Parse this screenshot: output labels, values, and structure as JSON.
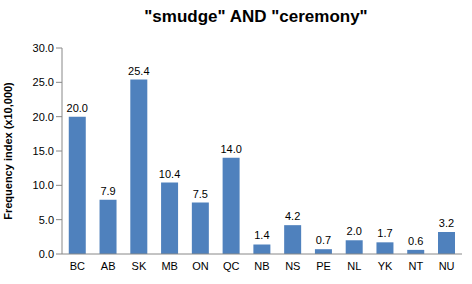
{
  "chart_data": {
    "type": "bar",
    "title": "\"smudge\" AND \"ceremony\"",
    "y_label": "Frequency index (x10,000)",
    "categories": [
      "BC",
      "AB",
      "SK",
      "MB",
      "ON",
      "QC",
      "NB",
      "NS",
      "PE",
      "NL",
      "YK",
      "NT",
      "NU"
    ],
    "values": [
      20.0,
      7.9,
      25.4,
      10.4,
      7.5,
      14.0,
      1.4,
      4.2,
      0.7,
      2.0,
      1.7,
      0.6,
      3.2
    ],
    "value_labels": [
      "20.0",
      "7.9",
      "25.4",
      "10.4",
      "7.5",
      "14.0",
      "1.4",
      "4.2",
      "0.7",
      "2.0",
      "1.7",
      "0.6",
      "3.2"
    ],
    "color": "#4f81bd",
    "ylim": [
      0,
      30
    ],
    "yticks": [
      {
        "value": 0,
        "label": "0.0"
      },
      {
        "value": 5,
        "label": "5.0"
      },
      {
        "value": 10,
        "label": "10.0"
      },
      {
        "value": 15,
        "label": "15.0"
      },
      {
        "value": 20,
        "label": "20.0"
      },
      {
        "value": 25,
        "label": "25.0"
      },
      {
        "value": 30,
        "label": "30.0"
      }
    ],
    "grid": false,
    "data_labels": true
  }
}
